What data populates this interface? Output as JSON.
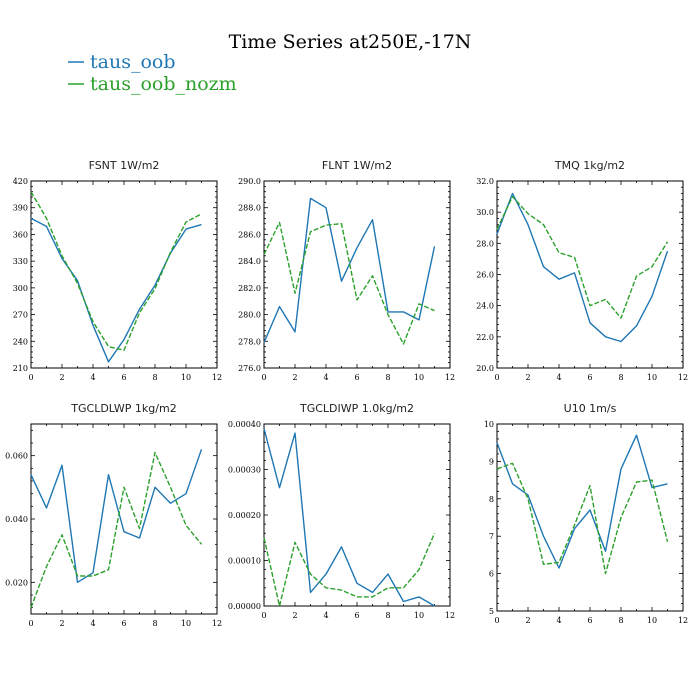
{
  "figure": {
    "title": "Time Series at250E,-17N",
    "legend": [
      {
        "label": "taus_oob",
        "color": "#1f77b4"
      },
      {
        "label": "taus_oob_nozm",
        "color": "#2ca02c"
      }
    ]
  },
  "chart_data": [
    {
      "type": "line",
      "title": "FSNT   1W/m2",
      "x": [
        0,
        1,
        2,
        3,
        4,
        5,
        6,
        7,
        8,
        9,
        10,
        11
      ],
      "xlim": [
        0,
        12
      ],
      "xticks": [
        0,
        2,
        4,
        6,
        8,
        10,
        12
      ],
      "ylim": [
        210,
        420
      ],
      "yticks": [
        210,
        240,
        270,
        300,
        330,
        360,
        390,
        420
      ],
      "ytick_labels": [
        "210",
        "240",
        "270",
        "300",
        "330",
        "360",
        "390",
        "420"
      ],
      "series": [
        {
          "name": "taus_oob",
          "color": "#1f77b4",
          "dashed": false,
          "values": [
            378,
            369,
            333,
            308,
            258,
            217,
            242,
            276,
            303,
            339,
            366,
            371
          ]
        },
        {
          "name": "taus_oob_nozm",
          "color": "#2ca02c",
          "dashed": true,
          "values": [
            408,
            378,
            336,
            305,
            262,
            234,
            230,
            272,
            299,
            340,
            374,
            383
          ]
        }
      ]
    },
    {
      "type": "line",
      "title": "FLNT   1W/m2",
      "x": [
        0,
        1,
        2,
        3,
        4,
        5,
        6,
        7,
        8,
        9,
        10,
        11
      ],
      "xlim": [
        0,
        12
      ],
      "xticks": [
        0,
        2,
        4,
        6,
        8,
        10,
        12
      ],
      "ylim": [
        276,
        290
      ],
      "yticks": [
        276,
        278,
        280,
        282,
        284,
        286,
        288,
        290
      ],
      "ytick_labels": [
        "276.0",
        "278.0",
        "280.0",
        "282.0",
        "284.0",
        "286.0",
        "288.0",
        "290.0"
      ],
      "series": [
        {
          "name": "taus_oob",
          "color": "#1f77b4",
          "dashed": false,
          "values": [
            277.9,
            280.6,
            278.7,
            288.7,
            288.0,
            282.5,
            285.0,
            287.1,
            280.2,
            280.2,
            279.6,
            285.1
          ]
        },
        {
          "name": "taus_oob_nozm",
          "color": "#2ca02c",
          "dashed": true,
          "values": [
            284.5,
            286.9,
            281.6,
            286.2,
            286.7,
            286.8,
            281.1,
            282.9,
            280.0,
            277.8,
            280.8,
            280.3
          ]
        }
      ]
    },
    {
      "type": "line",
      "title": "TMQ   1kg/m2",
      "x": [
        0,
        1,
        2,
        3,
        4,
        5,
        6,
        7,
        8,
        9,
        10,
        11
      ],
      "xlim": [
        0,
        12
      ],
      "xticks": [
        0,
        2,
        4,
        6,
        8,
        10,
        12
      ],
      "ylim": [
        20,
        32
      ],
      "yticks": [
        20,
        22,
        24,
        26,
        28,
        30,
        32
      ],
      "ytick_labels": [
        "20.0",
        "22.0",
        "24.0",
        "26.0",
        "28.0",
        "30.0",
        "32.0"
      ],
      "series": [
        {
          "name": "taus_oob",
          "color": "#1f77b4",
          "dashed": false,
          "values": [
            28.6,
            31.2,
            29.2,
            26.5,
            25.7,
            26.1,
            22.9,
            22.0,
            21.7,
            22.7,
            24.6,
            27.5
          ]
        },
        {
          "name": "taus_oob_nozm",
          "color": "#2ca02c",
          "dashed": true,
          "values": [
            28.9,
            31.0,
            29.9,
            29.2,
            27.4,
            27.1,
            24.0,
            24.4,
            23.2,
            25.9,
            26.5,
            28.1
          ]
        }
      ]
    },
    {
      "type": "line",
      "title": "TGCLDLWP   1kg/m2",
      "x": [
        0,
        1,
        2,
        3,
        4,
        5,
        6,
        7,
        8,
        9,
        10,
        11
      ],
      "xlim": [
        0,
        12
      ],
      "xticks": [
        0,
        2,
        4,
        6,
        8,
        10,
        12
      ],
      "ylim": [
        0.01,
        0.07
      ],
      "yticks": [
        0.02,
        0.04,
        0.06
      ],
      "ytick_labels": [
        "0.020",
        "0.040",
        "0.060"
      ],
      "series": [
        {
          "name": "taus_oob",
          "color": "#1f77b4",
          "dashed": false,
          "values": [
            0.054,
            0.0435,
            0.057,
            0.02,
            0.023,
            0.054,
            0.036,
            0.034,
            0.05,
            0.045,
            0.048,
            0.062
          ]
        },
        {
          "name": "taus_oob_nozm",
          "color": "#2ca02c",
          "dashed": true,
          "values": [
            0.012,
            0.025,
            0.035,
            0.022,
            0.022,
            0.024,
            0.05,
            0.037,
            0.061,
            0.05,
            0.038,
            0.032
          ]
        }
      ]
    },
    {
      "type": "line",
      "title": "TGCLDIWP   1.0kg/m2",
      "x": [
        0,
        1,
        2,
        3,
        4,
        5,
        6,
        7,
        8,
        9,
        10,
        11
      ],
      "xlim": [
        0,
        12
      ],
      "xticks": [
        0,
        2,
        4,
        6,
        8,
        10,
        12
      ],
      "ylim": [
        0,
        0.0004
      ],
      "yticks": [
        0,
        0.0001,
        0.0002,
        0.0003,
        0.0004
      ],
      "ytick_labels": [
        "0.00000",
        "0.00010",
        "0.00020",
        "0.00030",
        "0.00040"
      ],
      "series": [
        {
          "name": "taus_oob",
          "color": "#1f77b4",
          "dashed": false,
          "values": [
            0.00039,
            0.00026,
            0.00038,
            3e-05,
            7e-05,
            0.00013,
            5e-05,
            3e-05,
            7e-05,
            1e-05,
            2e-05,
            0.0
          ]
        },
        {
          "name": "taus_oob_nozm",
          "color": "#2ca02c",
          "dashed": true,
          "values": [
            0.00015,
            0.0,
            0.00014,
            7e-05,
            4e-05,
            3.5e-05,
            2e-05,
            2e-05,
            4e-05,
            4e-05,
            8e-05,
            0.00016
          ]
        }
      ]
    },
    {
      "type": "line",
      "title": "U10   1m/s",
      "x": [
        0,
        1,
        2,
        3,
        4,
        5,
        6,
        7,
        8,
        9,
        10,
        11
      ],
      "xlim": [
        0,
        12
      ],
      "xticks": [
        0,
        2,
        4,
        6,
        8,
        10,
        12
      ],
      "ylim": [
        5,
        10
      ],
      "yticks": [
        5,
        6,
        7,
        8,
        9,
        10
      ],
      "ytick_labels": [
        "5",
        "6",
        "7",
        "8",
        "9",
        "10"
      ],
      "series": [
        {
          "name": "taus_oob",
          "color": "#1f77b4",
          "dashed": false,
          "values": [
            9.5,
            8.4,
            8.1,
            7.0,
            6.15,
            7.2,
            7.7,
            6.6,
            8.8,
            9.7,
            8.3,
            8.4
          ]
        },
        {
          "name": "taus_oob_nozm",
          "color": "#2ca02c",
          "dashed": true,
          "values": [
            8.8,
            8.95,
            8.0,
            6.25,
            6.3,
            7.3,
            8.35,
            6.0,
            7.5,
            8.45,
            8.5,
            6.85
          ]
        }
      ]
    }
  ]
}
